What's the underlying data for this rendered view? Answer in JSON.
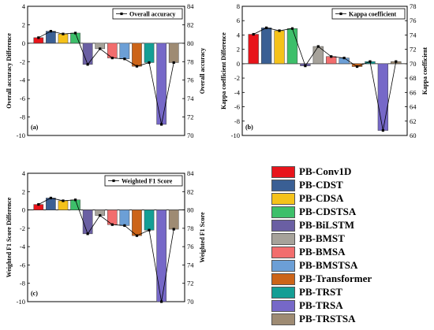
{
  "methods": [
    "PB-Conv1D",
    "PB-CDST",
    "PB-CDSA",
    "PB-CDSTSA",
    "PB-BiLSTM",
    "PB-BMST",
    "PB-BMSA",
    "PB-BMSTSA",
    "PB-Transformer",
    "PB-TRST",
    "PB-TRSA",
    "PB-TRSTSA"
  ],
  "colors": [
    "#e8141b",
    "#3a5f94",
    "#f5c21a",
    "#3dbf6a",
    "#6a5fa3",
    "#a6a29a",
    "#f26d6d",
    "#6c9fd6",
    "#cc6418",
    "#149e95",
    "#7668c8",
    "#9e8b73"
  ],
  "chart_data": [
    {
      "type": "bar",
      "panel_label": "(a)",
      "ylabel": "Overall accuracy Difference",
      "ylabel_right": "Overall accuracy",
      "legend_label": "Overall accuracy",
      "ylim": [
        -10,
        4
      ],
      "ylim_right": [
        70,
        84
      ],
      "yticks": [
        -10,
        -8,
        -6,
        -4,
        -2,
        0,
        2,
        4
      ],
      "yticks_right": [
        70,
        72,
        74,
        76,
        78,
        80,
        82,
        84
      ],
      "values": [
        0.6,
        1.3,
        1.0,
        1.1,
        -2.3,
        -0.6,
        -1.6,
        -1.7,
        -2.5,
        -2.1,
        -8.8,
        -2.1
      ],
      "line": [
        80.6,
        81.3,
        81.0,
        81.1,
        77.7,
        79.4,
        78.4,
        78.3,
        77.5,
        77.9,
        71.2,
        77.9
      ]
    },
    {
      "type": "bar",
      "panel_label": "(b)",
      "ylabel": "Kappa coefficient Difference",
      "ylabel_right": "Kappa coefficient",
      "legend_label": "Kappa coefficient",
      "ylim": [
        -10,
        8
      ],
      "ylim_right": [
        60,
        78
      ],
      "yticks": [
        -10,
        -8,
        -6,
        -4,
        -2,
        0,
        2,
        4,
        6,
        8
      ],
      "yticks_right": [
        60,
        62,
        64,
        66,
        68,
        70,
        72,
        74,
        76,
        78
      ],
      "values": [
        4.1,
        5.0,
        4.6,
        4.9,
        -0.3,
        2.4,
        1.0,
        0.8,
        -0.4,
        0.3,
        -9.3,
        0.3
      ],
      "line": [
        74.1,
        75.0,
        74.6,
        74.9,
        69.7,
        72.4,
        71.0,
        70.8,
        69.6,
        70.3,
        60.7,
        70.3
      ]
    },
    {
      "type": "bar",
      "panel_label": "(c)",
      "ylabel": "Weighted F1 Score Difference",
      "ylabel_right": "Weighted F1 Score",
      "legend_label": "Weighted F1 Score",
      "ylim": [
        -10,
        4
      ],
      "ylim_right": [
        70,
        84
      ],
      "yticks": [
        -10,
        -8,
        -6,
        -4,
        -2,
        0,
        2,
        4
      ],
      "yticks_right": [
        70,
        72,
        74,
        76,
        78,
        80,
        82,
        84
      ],
      "values": [
        0.6,
        1.3,
        1.0,
        1.1,
        -2.6,
        -0.6,
        -1.6,
        -1.7,
        -2.8,
        -2.2,
        -10.0,
        -2.1
      ],
      "line": [
        80.6,
        81.3,
        81.0,
        81.1,
        77.4,
        79.4,
        78.4,
        78.3,
        77.2,
        77.8,
        70.0,
        77.9
      ]
    }
  ]
}
